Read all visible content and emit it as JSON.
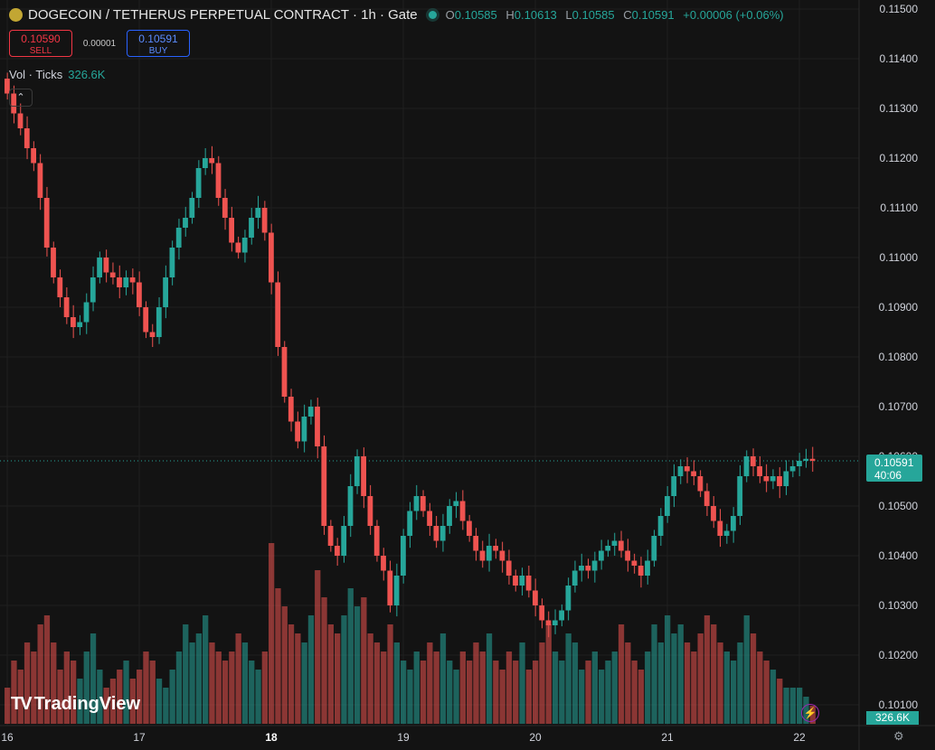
{
  "header": {
    "symbol_icon": "dogecoin-coin-icon",
    "coin_glyph": "Ð",
    "title": "DOGECOIN / TETHERUS PERPETUAL CONTRACT · 1h · Gate",
    "status_icon": "market-open-dot-icon",
    "open_label": "O",
    "open": "0.10585",
    "high_label": "H",
    "high": "0.10613",
    "low_label": "L",
    "low": "0.10585",
    "close_label": "C",
    "close": "0.10591",
    "change": "+0.00006 (+0.06%)"
  },
  "trade": {
    "sell_price": "0.10590",
    "sell_label": "SELL",
    "spread": "0.00001",
    "buy_price": "0.10591",
    "buy_label": "BUY"
  },
  "volume_indicator": {
    "label": "Vol · Ticks",
    "value": "326.6K"
  },
  "collapse_glyph": "⌃",
  "branding": {
    "mark": "TV",
    "name": "TradingView"
  },
  "bolt_glyph": "⚡",
  "gear_glyph": "⚙",
  "last_price_label": {
    "price": "0.10591",
    "countdown": "40:06"
  },
  "volume_label": "326.6K",
  "colors": {
    "up": "#26a69a",
    "down": "#ef5350",
    "background": "#131313",
    "grid": "#1f1f1f"
  },
  "chart_data": {
    "type": "candlestick",
    "title": "DOGECOIN / TETHERUS PERPETUAL CONTRACT · 1h · Gate",
    "y_ticks": [
      "0.11500",
      "0.11400",
      "0.11300",
      "0.11200",
      "0.11100",
      "0.11000",
      "0.10900",
      "0.10800",
      "0.10700",
      "0.10600",
      "0.10500",
      "0.10400",
      "0.10300",
      "0.10200",
      "0.10100"
    ],
    "ylim": [
      0.1006,
      0.1151
    ],
    "x_ticks": [
      {
        "label": "16",
        "index": 0
      },
      {
        "label": "17",
        "index": 20
      },
      {
        "label": "18",
        "index": 40
      },
      {
        "label": "19",
        "index": 60
      },
      {
        "label": "20",
        "index": 80
      },
      {
        "label": "21",
        "index": 100
      },
      {
        "label": "22",
        "index": 120
      }
    ],
    "last_price": 0.10591,
    "grid": true,
    "close_series": [
      0.1133,
      0.1129,
      0.1126,
      0.1122,
      0.1119,
      0.1112,
      0.1102,
      0.1096,
      0.1092,
      0.1088,
      0.1086,
      0.1087,
      0.1091,
      0.1096,
      0.11,
      0.1097,
      0.1096,
      0.1094,
      0.1096,
      0.1095,
      0.109,
      0.1085,
      0.1084,
      0.109,
      0.1096,
      0.1102,
      0.1106,
      0.1108,
      0.1112,
      0.1118,
      0.112,
      0.1119,
      0.1112,
      0.1108,
      0.1103,
      0.1101,
      0.1104,
      0.1108,
      0.111,
      0.1105,
      0.1095,
      0.1082,
      0.1072,
      0.1067,
      0.1063,
      0.1068,
      0.107,
      0.1062,
      0.1046,
      0.1042,
      0.104,
      0.1046,
      0.1054,
      0.106,
      0.1052,
      0.1046,
      0.104,
      0.1037,
      0.103,
      0.1036,
      0.1044,
      0.1049,
      0.1052,
      0.1049,
      0.1046,
      0.1043,
      0.1046,
      0.105,
      0.1051,
      0.1047,
      0.1044,
      0.1041,
      0.1039,
      0.1042,
      0.1041,
      0.1039,
      0.1036,
      0.1034,
      0.1036,
      0.1033,
      0.103,
      0.1027,
      0.1026,
      0.1027,
      0.1029,
      0.1034,
      0.1037,
      0.1038,
      0.1037,
      0.1039,
      0.1041,
      0.1042,
      0.1043,
      0.1041,
      0.1039,
      0.1038,
      0.1036,
      0.1039,
      0.1044,
      0.1048,
      0.1052,
      0.1056,
      0.1058,
      0.1057,
      0.1056,
      0.1053,
      0.105,
      0.1047,
      0.1044,
      0.1045,
      0.1048,
      0.1056,
      0.106,
      0.1058,
      0.1056,
      0.1055,
      0.1056,
      0.1054,
      0.1057,
      0.1058,
      0.10591,
      0.10595,
      0.10591
    ],
    "volume_series": [
      0.2,
      0.35,
      0.3,
      0.45,
      0.4,
      0.55,
      0.6,
      0.45,
      0.3,
      0.4,
      0.35,
      0.25,
      0.4,
      0.5,
      0.3,
      0.2,
      0.25,
      0.3,
      0.35,
      0.25,
      0.3,
      0.4,
      0.35,
      0.25,
      0.2,
      0.3,
      0.4,
      0.55,
      0.45,
      0.5,
      0.6,
      0.45,
      0.4,
      0.35,
      0.4,
      0.5,
      0.45,
      0.35,
      0.3,
      0.4,
      1.0,
      0.75,
      0.65,
      0.55,
      0.5,
      0.45,
      0.6,
      0.85,
      0.7,
      0.55,
      0.5,
      0.6,
      0.75,
      0.65,
      0.7,
      0.5,
      0.45,
      0.4,
      0.55,
      0.45,
      0.35,
      0.3,
      0.4,
      0.35,
      0.45,
      0.4,
      0.5,
      0.35,
      0.3,
      0.4,
      0.35,
      0.45,
      0.4,
      0.5,
      0.35,
      0.3,
      0.4,
      0.35,
      0.45,
      0.3,
      0.35,
      0.45,
      0.55,
      0.4,
      0.35,
      0.5,
      0.45,
      0.3,
      0.35,
      0.4,
      0.3,
      0.35,
      0.4,
      0.55,
      0.45,
      0.35,
      0.3,
      0.4,
      0.55,
      0.45,
      0.6,
      0.5,
      0.55,
      0.45,
      0.4,
      0.5,
      0.6,
      0.55,
      0.45,
      0.4,
      0.35,
      0.45,
      0.6,
      0.5,
      0.4,
      0.35,
      0.3,
      0.25,
      0.2,
      0.2,
      0.2,
      0.15,
      0.1
    ]
  }
}
